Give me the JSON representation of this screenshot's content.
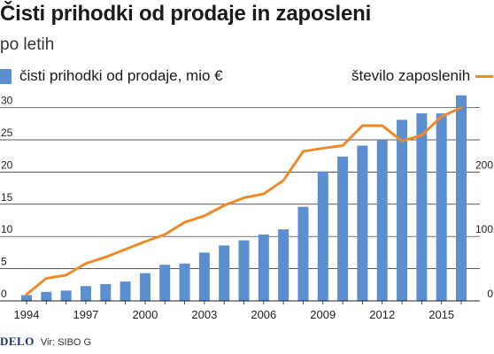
{
  "header": {
    "title": "Čisti prihodki od prodaje in zaposleni",
    "subtitle": "po letih"
  },
  "legend": {
    "bars_label": "čisti prihodki od prodaje, mio €",
    "line_label": "število zaposlenih"
  },
  "footer": {
    "brand": "DELO",
    "source": "Vir: SIBO G"
  },
  "colors": {
    "bars": "#5b8fcf",
    "line": "#ee8a2a",
    "grid": "#222222"
  },
  "chart_data": {
    "type": "bar",
    "x": [
      1994,
      1995,
      1996,
      1997,
      1998,
      1999,
      2000,
      2001,
      2002,
      2003,
      2004,
      2005,
      2006,
      2007,
      2008,
      2009,
      2010,
      2011,
      2012,
      2013,
      2014,
      2015,
      2016
    ],
    "x_tick_labels": [
      "1994",
      "1997",
      "2000",
      "2003",
      "2006",
      "2009",
      "2012",
      "2015"
    ],
    "x_tick_values": [
      1994,
      1997,
      2000,
      2003,
      2006,
      2009,
      2012,
      2015
    ],
    "series": [
      {
        "name": "čisti prihodki od prodaje, mio €",
        "type": "bar",
        "axis": "left",
        "values": [
          0.9,
          1.4,
          1.6,
          2.3,
          2.6,
          3.0,
          4.3,
          5.6,
          5.8,
          7.5,
          8.6,
          9.4,
          10.3,
          11.1,
          14.6,
          20.1,
          22.4,
          24.1,
          24.9,
          28.1,
          29.1,
          29.1,
          31.9
        ]
      },
      {
        "name": "število zaposlenih",
        "type": "line",
        "axis": "right",
        "values": [
          10,
          35,
          40,
          58,
          68,
          80,
          92,
          103,
          122,
          132,
          148,
          160,
          166,
          187,
          232,
          237,
          241,
          272,
          272,
          248,
          257,
          286,
          300
        ]
      }
    ],
    "y_left": {
      "ticks": [
        0,
        5,
        10,
        15,
        20,
        25,
        30
      ],
      "ylim": [
        0,
        32
      ]
    },
    "y_right": {
      "ticks": [
        0,
        100,
        200
      ],
      "ylim": [
        0,
        320
      ]
    },
    "grid": true
  }
}
